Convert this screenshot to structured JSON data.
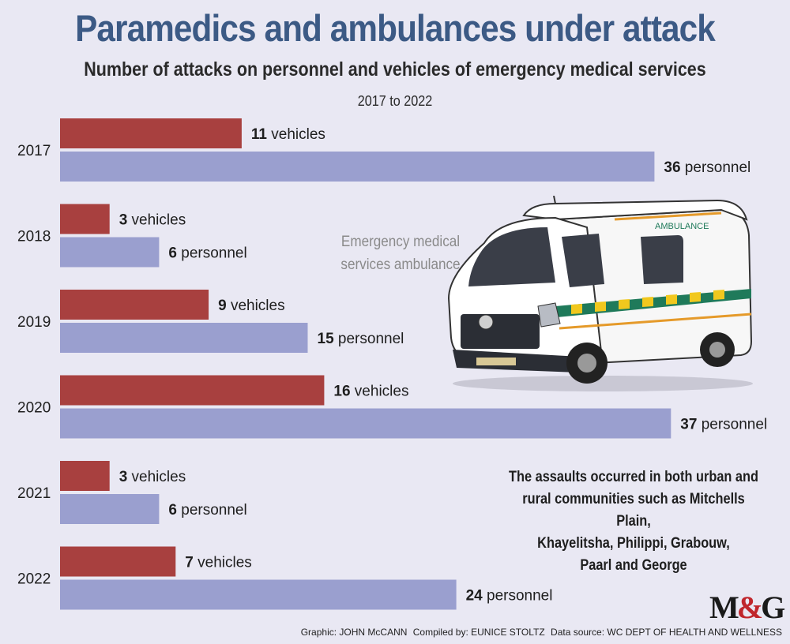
{
  "title": "Paramedics and ambulances under attack",
  "subtitle": "Number of attacks on personnel and vehicles of emergency medical services",
  "period": "2017 to 2022",
  "ambulance_caption_line1": "Emergency medical",
  "ambulance_caption_line2": "services ambulance",
  "ambulance_sign": "AMBULANCE",
  "note_line1": "The assaults occurred in both urban and",
  "note_line2": "rural communities such as Mitchells Plain,",
  "note_line3": "Khayelitsha, Philippi, Grabouw,",
  "note_line4": "Paarl and George",
  "logo_left": "M",
  "logo_amp": "&",
  "logo_right": "G",
  "credits": {
    "graphic": "Graphic: JOHN McCANN",
    "compiled": "Compiled by: EUNICE STOLTZ",
    "source": "Data source: WC DEPT OF HEALTH AND WELLNESS"
  },
  "colors": {
    "vehicles": "#a8403f",
    "personnel": "#9a9fcf",
    "title": "#3c5a85",
    "background": "#e9e8f3"
  },
  "chart_data": {
    "type": "bar",
    "orientation": "horizontal",
    "title": "Paramedics and ambulances under attack",
    "subtitle": "Number of attacks on personnel and vehicles of emergency medical services",
    "categories": [
      "2017",
      "2018",
      "2019",
      "2020",
      "2021",
      "2022"
    ],
    "series": [
      {
        "name": "vehicles",
        "unit": "vehicles",
        "values": [
          11,
          3,
          9,
          16,
          3,
          7
        ]
      },
      {
        "name": "personnel",
        "unit": "personnel",
        "values": [
          36,
          6,
          15,
          37,
          6,
          24
        ]
      }
    ],
    "xlim": [
      0,
      37
    ],
    "grid": false,
    "legend": "none"
  }
}
